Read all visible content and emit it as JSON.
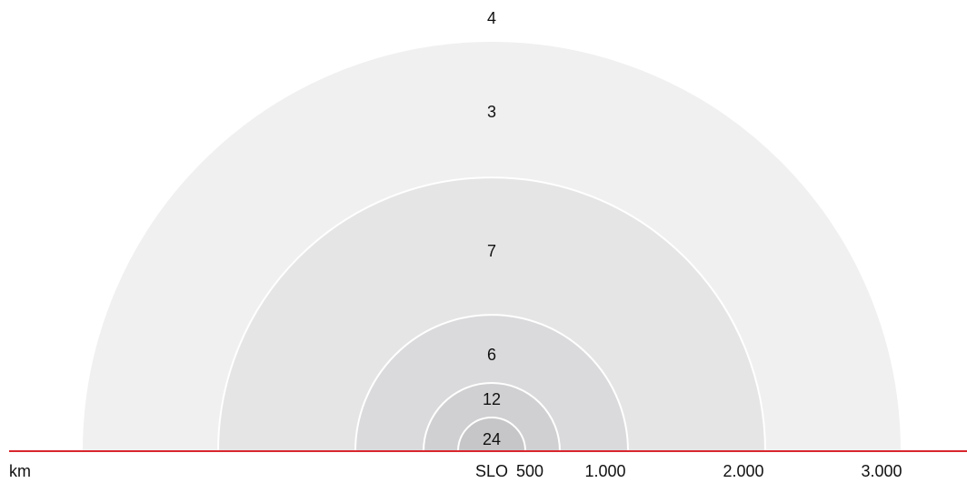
{
  "zones": [
    {
      "label": "4"
    },
    {
      "label": "3"
    },
    {
      "label": "7"
    },
    {
      "label": "6"
    },
    {
      "label": "12"
    },
    {
      "label": "24"
    }
  ],
  "axis": {
    "unit": "km",
    "origin": "SLO",
    "labels": [
      "500",
      "1.000",
      "2.000",
      "3.000"
    ]
  }
}
